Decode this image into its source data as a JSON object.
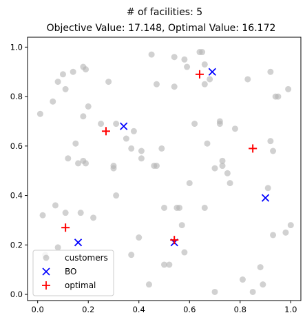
{
  "chart_data": {
    "type": "scatter",
    "title_line1": "# of facilities: 5",
    "title_line2": "Objective Value: 17.148, Optimal Value: 16.172",
    "xlabel": "",
    "ylabel": "",
    "xlim": [
      -0.04,
      1.04
    ],
    "ylim": [
      -0.025,
      1.04
    ],
    "x_ticks": [
      0.0,
      0.2,
      0.4,
      0.6,
      0.8,
      1.0
    ],
    "x_tick_labels": [
      "0.0",
      "0.2",
      "0.4",
      "0.6",
      "0.8",
      "1.0"
    ],
    "y_ticks": [
      0.0,
      0.2,
      0.4,
      0.6,
      0.8,
      1.0
    ],
    "y_tick_labels": [
      "0.0",
      "0.2",
      "0.4",
      "0.6",
      "0.8",
      "1.0"
    ],
    "grid": false,
    "legend_position": "lower-left",
    "colors": {
      "customers": "#b3b3b3",
      "bo": "#0000ff",
      "optimal": "#ff0000",
      "frame": "#000000"
    },
    "series": [
      {
        "name": "customers",
        "marker": "circle",
        "points": [
          [
            0.01,
            0.73
          ],
          [
            0.02,
            0.32
          ],
          [
            0.06,
            0.78
          ],
          [
            0.07,
            0.36
          ],
          [
            0.08,
            0.86
          ],
          [
            0.1,
            0.89
          ],
          [
            0.11,
            0.83
          ],
          [
            0.12,
            0.55
          ],
          [
            0.14,
            0.9
          ],
          [
            0.15,
            0.61
          ],
          [
            0.16,
            0.53
          ],
          [
            0.17,
            0.33
          ],
          [
            0.18,
            0.72
          ],
          [
            0.18,
            0.92
          ],
          [
            0.19,
            0.91
          ],
          [
            0.18,
            0.54
          ],
          [
            0.19,
            0.53
          ],
          [
            0.2,
            0.76
          ],
          [
            0.22,
            0.31
          ],
          [
            0.25,
            0.69
          ],
          [
            0.28,
            0.86
          ],
          [
            0.3,
            0.52
          ],
          [
            0.3,
            0.51
          ],
          [
            0.31,
            0.4
          ],
          [
            0.31,
            0.69
          ],
          [
            0.35,
            0.63
          ],
          [
            0.38,
            0.66
          ],
          [
            0.37,
            0.59
          ],
          [
            0.4,
            0.23
          ],
          [
            0.41,
            0.58
          ],
          [
            0.41,
            0.55
          ],
          [
            0.44,
            0.04
          ],
          [
            0.45,
            0.97
          ],
          [
            0.46,
            0.52
          ],
          [
            0.47,
            0.52
          ],
          [
            0.47,
            0.85
          ],
          [
            0.49,
            0.59
          ],
          [
            0.5,
            0.12
          ],
          [
            0.5,
            0.35
          ],
          [
            0.54,
            0.96
          ],
          [
            0.54,
            0.84
          ],
          [
            0.55,
            0.35
          ],
          [
            0.57,
            0.28
          ],
          [
            0.58,
            0.95
          ],
          [
            0.59,
            0.92
          ],
          [
            0.6,
            0.45
          ],
          [
            0.62,
            0.69
          ],
          [
            0.64,
            0.98
          ],
          [
            0.65,
            0.98
          ],
          [
            0.66,
            0.85
          ],
          [
            0.66,
            0.93
          ],
          [
            0.67,
            0.61
          ],
          [
            0.68,
            0.87
          ],
          [
            0.7,
            0.01
          ],
          [
            0.7,
            0.51
          ],
          [
            0.72,
            0.7
          ],
          [
            0.72,
            0.69
          ],
          [
            0.73,
            0.54
          ],
          [
            0.73,
            0.52
          ],
          [
            0.75,
            0.49
          ],
          [
            0.76,
            0.45
          ],
          [
            0.78,
            0.67
          ],
          [
            0.81,
            0.06
          ],
          [
            0.83,
            0.87
          ],
          [
            0.85,
            0.01
          ],
          [
            0.88,
            0.11
          ],
          [
            0.89,
            0.04
          ],
          [
            0.91,
            0.43
          ],
          [
            0.92,
            0.9
          ],
          [
            0.92,
            0.62
          ],
          [
            0.93,
            0.58
          ],
          [
            0.94,
            0.8
          ],
          [
            0.95,
            0.8
          ],
          [
            0.98,
            0.25
          ],
          [
            0.99,
            0.83
          ],
          [
            1.0,
            0.28
          ],
          [
            0.03,
            0.16
          ],
          [
            0.08,
            0.19
          ],
          [
            0.11,
            0.33
          ],
          [
            0.52,
            0.12
          ],
          [
            0.37,
            0.16
          ],
          [
            0.56,
            0.35
          ],
          [
            0.58,
            0.17
          ],
          [
            0.93,
            0.24
          ],
          [
            0.66,
            0.35
          ]
        ]
      },
      {
        "name": "BO",
        "marker": "x",
        "points": [
          [
            0.16,
            0.21
          ],
          [
            0.34,
            0.68
          ],
          [
            0.54,
            0.21
          ],
          [
            0.69,
            0.9
          ],
          [
            0.9,
            0.39
          ]
        ]
      },
      {
        "name": "optimal",
        "marker": "plus",
        "points": [
          [
            0.11,
            0.27
          ],
          [
            0.27,
            0.66
          ],
          [
            0.54,
            0.22
          ],
          [
            0.64,
            0.89
          ],
          [
            0.85,
            0.59
          ]
        ]
      }
    ]
  }
}
